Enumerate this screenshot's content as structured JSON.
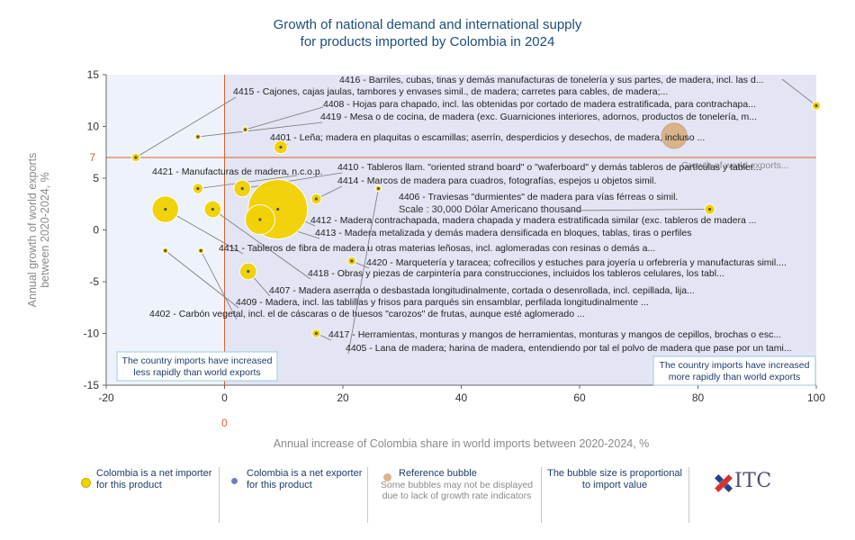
{
  "title": {
    "line1": "Growth of national demand and international supply",
    "line2": "for products imported by Colombia in 2024"
  },
  "colors": {
    "importer": "#f2d200",
    "exporter": "#6f7fc0",
    "reference": "#d8b48c",
    "refline": "#d9622b",
    "plot_left_bg": "#eef3fb",
    "plot_right_bg": "#e3e5f5",
    "title": "#1f4e79"
  },
  "chart_data": {
    "type": "scatter",
    "title": "Growth of national demand and international supply for products imported by Colombia in 2024",
    "xlabel": "Annual increase of Colombia share in world imports between 2020-2024, %",
    "ylabel": "Annual growth of world exports between 2020-2024, %",
    "xlim": [
      -20,
      100
    ],
    "ylim": [
      -15,
      15
    ],
    "xticks": [
      "-20",
      "0",
      "20",
      "40",
      "60",
      "80",
      "100"
    ],
    "yticks": [
      "15",
      "10",
      "5",
      "0",
      "-5",
      "-10",
      "-15"
    ],
    "grid": false,
    "reference_lines": {
      "x": 0,
      "x_label": "0",
      "y": 7,
      "y_label": "7"
    },
    "reference_bubble": {
      "x": 76,
      "y": 9.1,
      "scale_label": "Scale : 30,000 Dólar Americano thousand",
      "text": "Growth of world exports..."
    },
    "points": [
      {
        "code": "4416",
        "x": 100,
        "y": 12,
        "size": 2,
        "label": "4416 - Barriles, cubas, tinas y demás manufacturas de tonelería y sus partes, de madera, incl. las d..."
      },
      {
        "code": "4415",
        "x": -15,
        "y": 7,
        "size": 2,
        "label": "4415 - Cajones, cajas jaulas, tambores y envases simil., de madera; carretes para cables, de madera;..."
      },
      {
        "code": "4408",
        "x": 3.5,
        "y": 9.7,
        "size": 1,
        "label": "4408 - Hojas para chapado, incl. las obtenidas por cortado de madera estratificada, para contrachapa..."
      },
      {
        "code": "4419",
        "x": -4.5,
        "y": 9,
        "size": 1,
        "label": "4419 - Mesa o de cocina, de madera (exc. Guarniciones interiores, adornos, productos de tonelería, m..."
      },
      {
        "code": "4401",
        "x": 9.5,
        "y": 8,
        "size": 5,
        "label": "4401 - Leña; madera en plaquitas o escamillas; aserrín, desperdicios y desechos, de madera, incluso ..."
      },
      {
        "code": "4421",
        "x": -4.5,
        "y": 4,
        "size": 3,
        "label": "4421 - Manufacturas de madera, n.c.o.p."
      },
      {
        "code": "4410",
        "x": 3,
        "y": 4,
        "size": 8,
        "label": "4410 - Tableros llam. \"oriented strand board\" o \"waferboard\" y demás tableros de partículas y tabler..."
      },
      {
        "code": "4414",
        "x": 15.5,
        "y": 3,
        "size": 3,
        "label": "4414 - Marcos de madera para cuadros, fotografías, espejos u objetos simil."
      },
      {
        "code": "4406",
        "x": 82,
        "y": 2,
        "size": 3,
        "label": "4406 - Traviesas \"durmientes\" de madera para vías férreas o simil."
      },
      {
        "code": "4412",
        "x": 9,
        "y": 2,
        "size": 100,
        "label": "4412 - Madera contrachapada, madera chapada y madera estratificada similar (exc. tableros de madera ..."
      },
      {
        "code": "4413",
        "x": 6,
        "y": 1,
        "size": 25,
        "label": "4413 - Madera metalizada y demás madera densificada en bloques, tablas, tiras o perfiles"
      },
      {
        "code": "4411",
        "x": -10,
        "y": 2,
        "size": 20,
        "label": "4411 - Tableros de fibra de madera u otras materias leñosas, incl. aglomeradas con resinas o demás a..."
      },
      {
        "code": "4418",
        "x": -2,
        "y": 2,
        "size": 8,
        "label": "4418 - Obras y piezas de carpintería para construcciones, incluidos los tableros celulares, los tabl..."
      },
      {
        "code": "4420",
        "x": 21.5,
        "y": -3,
        "size": 2,
        "label": "4420 - Marquetería y taracea; cofrecillos y estuches para joyería u orfebrería y manufacturas simil...."
      },
      {
        "code": "4407",
        "x": 4,
        "y": -4,
        "size": 8,
        "label": "4407 - Madera aserrada o desbastada longitudinalmente, cortada o desenrollada, incl. cepillada, lija..."
      },
      {
        "code": "4409",
        "x": -10,
        "y": -2,
        "size": 1,
        "label": "4409 - Madera, incl. las tablillas y frisos para parqués sin ensamblar, perfilada longitudinalmente ..."
      },
      {
        "code": "4402",
        "x": -4,
        "y": -2,
        "size": 1,
        "label": "4402 - Carbón vegetal, incl. el de cáscaras o de huesos \"carozos\" de frutas, aunque esté aglomerado ..."
      },
      {
        "code": "4417",
        "x": 15.5,
        "y": -10,
        "size": 2,
        "label": "4417 - Herramientas, monturas y mangos de herramientas, monturas y mangos de cepillos, brochas o esc..."
      },
      {
        "code": "4405",
        "x": 26,
        "y": 4,
        "size": 1,
        "label": "4405 - Lana de madera; harina de madera, entendiendo por tal el polvo de madera que pase por un tami..."
      }
    ],
    "quadrant_notes": {
      "left": "The country imports have increased less rapidly than world exports",
      "right": "The country imports have increased more rapidly than world exports"
    }
  },
  "legend": {
    "importer": "Colombia is a net importer for this product",
    "exporter": "Colombia is a net exporter for this product",
    "reference_title": "Reference bubble",
    "reference_note": "Some bubbles may not be displayed due to lack of growth rate indicators",
    "size_note": "The bubble size is proportional to import value",
    "logo_text": "ITC"
  }
}
